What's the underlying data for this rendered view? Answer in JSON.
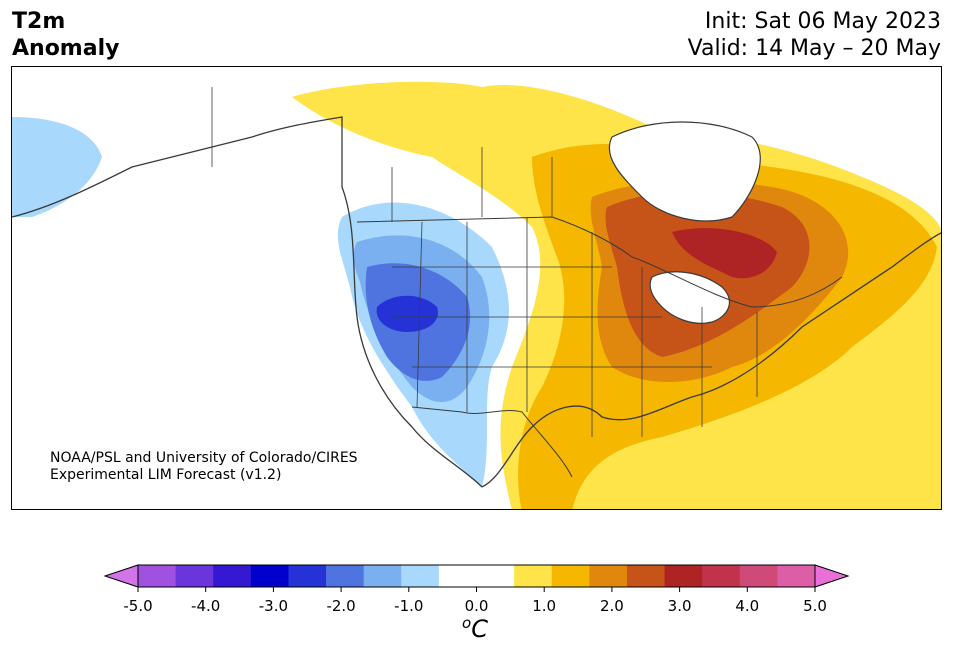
{
  "header": {
    "title_line1": "T2m",
    "title_line2": "Anomaly",
    "init": "Init: Sat 06 May 2023",
    "valid": "Valid: 14 May – 20 May"
  },
  "credit": {
    "line1": "NOAA/PSL and University of Colorado/CIRES",
    "line2": "Experimental LIM Forecast (v1.2)"
  },
  "colorbar": {
    "colors": [
      "#d174e8",
      "#a151e0",
      "#6a35da",
      "#3519d2",
      "#0000cc",
      "#2533d6",
      "#4f74e0",
      "#7ab0f0",
      "#a8d8fb",
      "#ffffff",
      "#ffffff",
      "#fee349",
      "#f5b700",
      "#e0880e",
      "#c65419",
      "#ae2324",
      "#c0334a",
      "#cf4a78",
      "#db5ea7",
      "#e870d8"
    ],
    "tick_values": [
      "-5.0",
      "-4.0",
      "-3.0",
      "-2.0",
      "-1.0",
      "0.0",
      "1.0",
      "2.0",
      "3.0",
      "4.0",
      "5.0"
    ],
    "unit": "C",
    "unit_prefix": "o"
  },
  "map_colors": {
    "land_border": "#3a3a3a",
    "cold_light": "#a8d8fb",
    "cold_mid": "#7ab0f0",
    "cold": "#4f74e0",
    "cold_deep": "#2533d6",
    "warm_light": "#fee349",
    "warm": "#f5b700",
    "warm_mid": "#e0880e",
    "warm_deep": "#c65419",
    "warm_max": "#ae2324"
  }
}
